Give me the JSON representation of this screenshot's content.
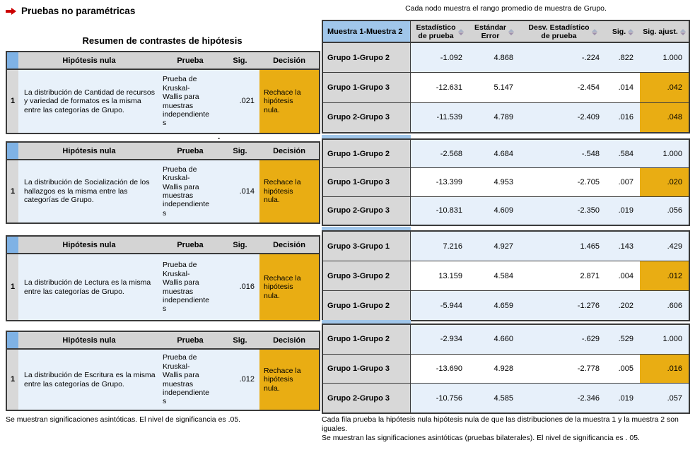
{
  "icons": {
    "title_arrow": "red-arrow-right",
    "column_sort": "sort-arrows-up-down"
  },
  "colors": {
    "decision_highlight": "#e9ad13",
    "corner_blue": "#7fb2e5",
    "header_blue": "#a0c6ea",
    "row_blue": "#e8f1fa",
    "header_gray": "#d4d4d4",
    "label_gray": "#d8d8d8",
    "title_arrow_red": "#cc0000"
  },
  "left_panel": {
    "title": "Pruebas no paramétricas",
    "subtitle": "Resumen de contrastes de hipótesis",
    "columns": [
      "Hipótesis nula",
      "Prueba",
      "Sig.",
      "Decisión"
    ],
    "stray_mark": ".",
    "tests": [
      {
        "row_num": "1",
        "null_hypothesis": "La distribución de Cantidad de recursos y variedad de formatos es la misma entre las categorías de Grupo.",
        "test": "Prueba de\nKruskal-\nWallis para\nmuestras\nindependiente\ns",
        "sig": ".021",
        "decision": "Rechace la\nhipótesis\nnula."
      },
      {
        "row_num": "1",
        "null_hypothesis": "La distribución de Socialización de los hallazgos es la misma entre las categorías de Grupo.",
        "test": "Prueba de\nKruskal-\nWallis para\nmuestras\nindependiente\ns",
        "sig": ".014",
        "decision": "Rechace la\nhipótesis\nnula."
      },
      {
        "row_num": "1",
        "null_hypothesis": "La distribución de Lectura es la misma entre las categorías de Grupo.",
        "test": "Prueba de\nKruskal-\nWallis para\nmuestras\nindependiente\ns",
        "sig": ".016",
        "decision": "Rechace la\nhipótesis\nnula."
      },
      {
        "row_num": "1",
        "null_hypothesis": "La distribución de Escritura es la misma entre las categorías de Grupo.",
        "test": "Prueba de\nKruskal-\nWallis para\nmuestras\nindependiente\ns",
        "sig": ".012",
        "decision": "Rechace la\nhipótesis\nnula."
      }
    ],
    "footnote": "Se muestran significaciones asintóticas.  El nivel de significancia es .05."
  },
  "right_panel": {
    "caption": "Cada nodo muestra el rango promedio de muestra de Grupo.",
    "columns": [
      "Muestra 1-Muestra 2",
      "Estadístico\nde prueba",
      "Estándar\nError",
      "Desv. Estadístico\nde prueba",
      "Sig.",
      "Sig. ajust."
    ],
    "blocks": [
      {
        "rows": [
          {
            "pair": "Grupo 1-Grupo 2",
            "test_statistic": "-1.092",
            "std_error": "4.868",
            "std_test_statistic": "-.224",
            "sig": ".822",
            "adj_sig": "1.000",
            "highlight": false
          },
          {
            "pair": "Grupo 1-Grupo 3",
            "test_statistic": "-12.631",
            "std_error": "5.147",
            "std_test_statistic": "-2.454",
            "sig": ".014",
            "adj_sig": ".042",
            "highlight": true
          },
          {
            "pair": "Grupo 2-Grupo 3",
            "test_statistic": "-11.539",
            "std_error": "4.789",
            "std_test_statistic": "-2.409",
            "sig": ".016",
            "adj_sig": ".048",
            "highlight": true
          }
        ]
      },
      {
        "rows": [
          {
            "pair": "Grupo 1-Grupo 2",
            "test_statistic": "-2.568",
            "std_error": "4.684",
            "std_test_statistic": "-.548",
            "sig": ".584",
            "adj_sig": "1.000",
            "highlight": false
          },
          {
            "pair": "Grupo 1-Grupo 3",
            "test_statistic": "-13.399",
            "std_error": "4.953",
            "std_test_statistic": "-2.705",
            "sig": ".007",
            "adj_sig": ".020",
            "highlight": true
          },
          {
            "pair": "Grupo 2-Grupo 3",
            "test_statistic": "-10.831",
            "std_error": "4.609",
            "std_test_statistic": "-2.350",
            "sig": ".019",
            "adj_sig": ".056",
            "highlight": false
          }
        ]
      },
      {
        "rows": [
          {
            "pair": "Grupo 3-Grupo 1",
            "test_statistic": "7.216",
            "std_error": "4.927",
            "std_test_statistic": "1.465",
            "sig": ".143",
            "adj_sig": ".429",
            "highlight": false
          },
          {
            "pair": "Grupo 3-Grupo 2",
            "test_statistic": "13.159",
            "std_error": "4.584",
            "std_test_statistic": "2.871",
            "sig": ".004",
            "adj_sig": ".012",
            "highlight": true
          },
          {
            "pair": "Grupo 1-Grupo 2",
            "test_statistic": "-5.944",
            "std_error": "4.659",
            "std_test_statistic": "-1.276",
            "sig": ".202",
            "adj_sig": ".606",
            "highlight": false
          }
        ]
      },
      {
        "rows": [
          {
            "pair": "Grupo 1-Grupo 2",
            "test_statistic": "-2.934",
            "std_error": "4.660",
            "std_test_statistic": "-.629",
            "sig": ".529",
            "adj_sig": "1.000",
            "highlight": false
          },
          {
            "pair": "Grupo 1-Grupo 3",
            "test_statistic": "-13.690",
            "std_error": "4.928",
            "std_test_statistic": "-2.778",
            "sig": ".005",
            "adj_sig": ".016",
            "highlight": true
          },
          {
            "pair": "Grupo 2-Grupo 3",
            "test_statistic": "-10.756",
            "std_error": "4.585",
            "std_test_statistic": "-2.346",
            "sig": ".019",
            "adj_sig": ".057",
            "highlight": false
          }
        ]
      }
    ],
    "footnote": "Cada fila prueba la hipótesis nula hipótesis nula de que las distribuciones de la muestra 1 y la muestra 2 son iguales.\nSe muestran las significaciones asintóticas (pruebas bilaterales). El nivel de significancia es . 05."
  }
}
